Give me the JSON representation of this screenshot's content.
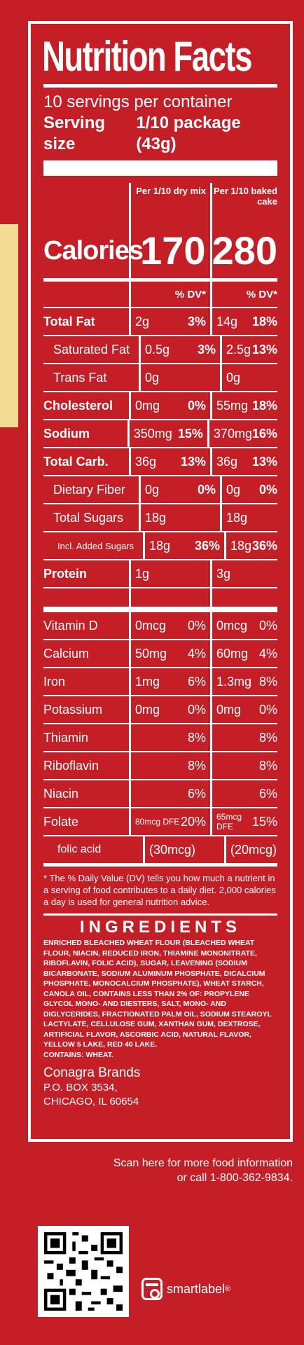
{
  "label": {
    "title": "Nutrition Facts",
    "servings": "10 servings per container",
    "serving_size_label": "Serving size",
    "serving_size_value": "1/10 package (43g)",
    "col1_header": "Per 1/10 dry mix",
    "col2_header": "Per 1/10 baked cake",
    "calories_label": "Calories",
    "calories_col1": "170",
    "calories_col2": "280",
    "dv_header": "% DV*",
    "nutrients": [
      {
        "name": "Total Fat",
        "a1": "2g",
        "d1": "3%",
        "a2": "14g",
        "d2": "18%"
      },
      {
        "name": "Saturated Fat",
        "a1": "0.5g",
        "d1": "3%",
        "a2": "2.5g",
        "d2": "13%"
      },
      {
        "name": "Trans Fat",
        "a1": "0g",
        "d1": "",
        "a2": "0g",
        "d2": ""
      },
      {
        "name": "Cholesterol",
        "a1": "0mg",
        "d1": "0%",
        "a2": "55mg",
        "d2": "18%"
      },
      {
        "name": "Sodium",
        "a1": "350mg",
        "d1": "15%",
        "a2": "370mg",
        "d2": "16%"
      },
      {
        "name": "Total Carb.",
        "a1": "36g",
        "d1": "13%",
        "a2": "36g",
        "d2": "13%"
      },
      {
        "name": "Dietary Fiber",
        "a1": "0g",
        "d1": "0%",
        "a2": "0g",
        "d2": "0%"
      },
      {
        "name": "Total Sugars",
        "a1": "18g",
        "d1": "",
        "a2": "18g",
        "d2": ""
      },
      {
        "name": "Incl. Added Sugars",
        "a1": "18g",
        "d1": "36%",
        "a2": "18g",
        "d2": "36%"
      },
      {
        "name": "Protein",
        "a1": "1g",
        "d1": "",
        "a2": "3g",
        "d2": ""
      }
    ],
    "vitamins": [
      {
        "name": "Vitamin D",
        "a1": "0mcg",
        "d1": "0%",
        "a2": "0mcg",
        "d2": "0%"
      },
      {
        "name": "Calcium",
        "a1": "50mg",
        "d1": "4%",
        "a2": "60mg",
        "d2": "4%"
      },
      {
        "name": "Iron",
        "a1": "1mg",
        "d1": "6%",
        "a2": "1.3mg",
        "d2": "8%"
      },
      {
        "name": "Potassium",
        "a1": "0mg",
        "d1": "0%",
        "a2": "0mg",
        "d2": "0%"
      },
      {
        "name": "Thiamin",
        "a1": "",
        "d1": "8%",
        "a2": "",
        "d2": "8%"
      },
      {
        "name": "Riboflavin",
        "a1": "",
        "d1": "8%",
        "a2": "",
        "d2": "8%"
      },
      {
        "name": "Niacin",
        "a1": "",
        "d1": "6%",
        "a2": "",
        "d2": "6%"
      },
      {
        "name": "Folate",
        "a1": "80mcg DFE",
        "d1": "20%",
        "a2": "65mcg DFE",
        "d2": "15%"
      },
      {
        "name": "folic acid",
        "a1": "(30mcg)",
        "d1": "",
        "a2": "(20mcg)",
        "d2": ""
      }
    ],
    "footnote": "* The % Daily Value (DV) tells you how much a nutrient in a serving of food contributes to a daily diet. 2,000 calories a day is used for general nutrition advice.",
    "ingredients_title": "INGREDIENTS",
    "ingredients_text": "ENRICHED BLEACHED WHEAT FLOUR (BLEACHED WHEAT FLOUR, NIACIN, REDUCED IRON, THIAMINE MONONITRATE, RIBOFLAVIN, FOLIC ACID), SUGAR, LEAVENING (SODIUM BICARBONATE, SODIUM ALUMINUM PHOSPHATE, DICALCIUM PHOSPHATE, MONOCALCIUM PHOSPHATE), WHEAT STARCH, CANOLA OIL, CONTAINS LESS THAN 2% OF: PROPYLENE GLYCOL MONO- AND DIESTERS, SALT, MONO- AND DIGLYCERIDES, FRACTIONATED PALM OIL, SODIUM STEAROYL LACTYLATE, CELLULOSE GUM, XANTHAN GUM, DEXTROSE, ARTIFICIAL FLAVOR, ASCORBIC ACID, NATURAL FLAVOR, YELLOW 5 LAKE, RED 40 LAKE.",
    "contains": "CONTAINS: WHEAT.",
    "company": "Conagra Brands",
    "address1": "P.O. BOX 3534,",
    "address2": "CHICAGO, IL 60654"
  },
  "footer": {
    "scan_line1": "Scan here for more food information",
    "scan_line2": "or call 1-800-362-9834.",
    "smartlabel": "smartlabel",
    "registered": "®"
  },
  "colors": {
    "background": "#c41f26",
    "text": "#ffffff",
    "strip": "#f2dc93"
  }
}
